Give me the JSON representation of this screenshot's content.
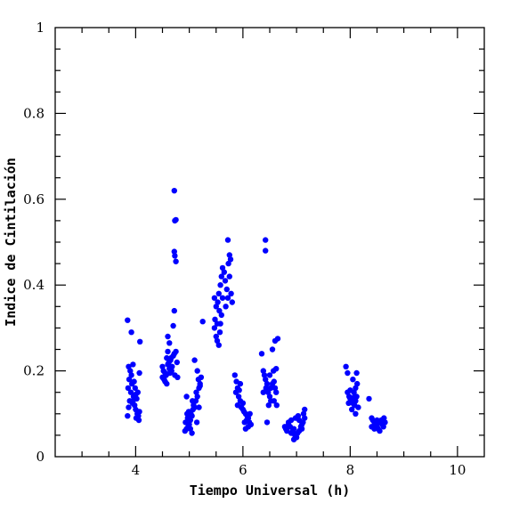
{
  "chart_data": {
    "type": "scatter",
    "xlabel": "Tiempo Universal (h)",
    "ylabel": "Indice de Cintilación",
    "xlim": [
      2.5,
      10.5
    ],
    "ylim": [
      0,
      1
    ],
    "x_ticks": [
      4,
      6,
      8,
      10
    ],
    "x_tick_labels": [
      "4",
      "6",
      "8",
      "10"
    ],
    "y_ticks": [
      0,
      0.2,
      0.4,
      0.6,
      0.8,
      1
    ],
    "y_tick_labels": [
      "0",
      "0.2",
      "0.4",
      "0.6",
      "0.8",
      "1"
    ],
    "marker_color": "#0000ff",
    "grid": false,
    "series": [
      {
        "points": [
          [
            3.85,
            0.318
          ],
          [
            3.92,
            0.29
          ],
          [
            3.87,
            0.21
          ],
          [
            3.9,
            0.2
          ],
          [
            3.95,
            0.215
          ],
          [
            3.88,
            0.18
          ],
          [
            3.93,
            0.17
          ],
          [
            3.86,
            0.16
          ],
          [
            3.91,
            0.15
          ],
          [
            3.96,
            0.14
          ],
          [
            3.89,
            0.13
          ],
          [
            3.94,
            0.125
          ],
          [
            3.98,
            0.12
          ],
          [
            3.87,
            0.115
          ],
          [
            4.0,
            0.11
          ],
          [
            4.03,
            0.1
          ],
          [
            4.05,
            0.095
          ],
          [
            4.07,
            0.105
          ],
          [
            4.02,
            0.135
          ],
          [
            4.04,
            0.15
          ],
          [
            3.99,
            0.16
          ],
          [
            4.01,
            0.09
          ],
          [
            4.06,
            0.085
          ],
          [
            3.85,
            0.095
          ],
          [
            4.08,
            0.268
          ],
          [
            4.07,
            0.195
          ],
          [
            3.92,
            0.19
          ],
          [
            3.97,
            0.175
          ],
          [
            4.0,
            0.145
          ],
          [
            3.95,
            0.13
          ],
          [
            4.5,
            0.21
          ],
          [
            4.52,
            0.2
          ],
          [
            4.55,
            0.195
          ],
          [
            4.57,
            0.19
          ],
          [
            4.53,
            0.18
          ],
          [
            4.6,
            0.215
          ],
          [
            4.62,
            0.22
          ],
          [
            4.58,
            0.23
          ],
          [
            4.65,
            0.225
          ],
          [
            4.55,
            0.175
          ],
          [
            4.5,
            0.185
          ],
          [
            4.63,
            0.205
          ],
          [
            4.67,
            0.2
          ],
          [
            4.6,
            0.245
          ],
          [
            4.72,
            0.24
          ],
          [
            4.75,
            0.245
          ],
          [
            4.7,
            0.235
          ],
          [
            4.68,
            0.21
          ],
          [
            4.73,
            0.19
          ],
          [
            4.6,
            0.28
          ],
          [
            4.63,
            0.265
          ],
          [
            4.7,
            0.305
          ],
          [
            4.72,
            0.34
          ],
          [
            4.73,
            0.55
          ],
          [
            4.75,
            0.552
          ],
          [
            4.72,
            0.478
          ],
          [
            4.73,
            0.468
          ],
          [
            4.75,
            0.455
          ],
          [
            4.72,
            0.62
          ],
          [
            4.78,
            0.185
          ],
          [
            4.77,
            0.22
          ],
          [
            4.58,
            0.17
          ],
          [
            4.64,
            0.195
          ],
          [
            4.66,
            0.23
          ],
          [
            4.92,
            0.06
          ],
          [
            4.95,
            0.065
          ],
          [
            4.98,
            0.07
          ],
          [
            5.0,
            0.075
          ],
          [
            4.93,
            0.08
          ],
          [
            5.02,
            0.085
          ],
          [
            4.97,
            0.09
          ],
          [
            5.05,
            0.095
          ],
          [
            5.03,
            0.1
          ],
          [
            4.99,
            0.105
          ],
          [
            5.07,
            0.11
          ],
          [
            5.1,
            0.115
          ],
          [
            5.08,
            0.12
          ],
          [
            5.12,
            0.13
          ],
          [
            5.15,
            0.14
          ],
          [
            5.13,
            0.15
          ],
          [
            5.18,
            0.16
          ],
          [
            5.2,
            0.17
          ],
          [
            5.17,
            0.18
          ],
          [
            5.22,
            0.185
          ],
          [
            5.15,
            0.2
          ],
          [
            5.1,
            0.225
          ],
          [
            4.95,
            0.14
          ],
          [
            5.25,
            0.315
          ],
          [
            5.2,
            0.165
          ],
          [
            5.18,
            0.115
          ],
          [
            5.05,
            0.055
          ],
          [
            4.96,
            0.1
          ],
          [
            5.06,
            0.13
          ],
          [
            5.14,
            0.08
          ],
          [
            5.02,
            0.065
          ],
          [
            5.47,
            0.3
          ],
          [
            5.5,
            0.28
          ],
          [
            5.52,
            0.27
          ],
          [
            5.55,
            0.26
          ],
          [
            5.48,
            0.32
          ],
          [
            5.5,
            0.35
          ],
          [
            5.53,
            0.36
          ],
          [
            5.56,
            0.34
          ],
          [
            5.58,
            0.31
          ],
          [
            5.6,
            0.33
          ],
          [
            5.62,
            0.37
          ],
          [
            5.55,
            0.38
          ],
          [
            5.58,
            0.4
          ],
          [
            5.6,
            0.42
          ],
          [
            5.62,
            0.44
          ],
          [
            5.65,
            0.43
          ],
          [
            5.67,
            0.41
          ],
          [
            5.7,
            0.39
          ],
          [
            5.72,
            0.37
          ],
          [
            5.68,
            0.35
          ],
          [
            5.73,
            0.45
          ],
          [
            5.75,
            0.47
          ],
          [
            5.72,
            0.505
          ],
          [
            5.77,
            0.46
          ],
          [
            5.75,
            0.42
          ],
          [
            5.78,
            0.38
          ],
          [
            5.8,
            0.36
          ],
          [
            5.52,
            0.31
          ],
          [
            5.47,
            0.37
          ],
          [
            5.57,
            0.29
          ],
          [
            5.85,
            0.19
          ],
          [
            5.88,
            0.175
          ],
          [
            5.9,
            0.16
          ],
          [
            5.87,
            0.15
          ],
          [
            5.92,
            0.14
          ],
          [
            5.95,
            0.13
          ],
          [
            5.9,
            0.12
          ],
          [
            5.97,
            0.115
          ],
          [
            6.0,
            0.11
          ],
          [
            6.02,
            0.105
          ],
          [
            6.05,
            0.1
          ],
          [
            6.08,
            0.095
          ],
          [
            6.1,
            0.09
          ],
          [
            6.07,
            0.085
          ],
          [
            6.12,
            0.08
          ],
          [
            6.15,
            0.075
          ],
          [
            6.1,
            0.07
          ],
          [
            6.05,
            0.065
          ],
          [
            6.0,
            0.125
          ],
          [
            5.95,
            0.17
          ],
          [
            6.13,
            0.1
          ],
          [
            5.93,
            0.155
          ],
          [
            6.03,
            0.08
          ],
          [
            6.35,
            0.24
          ],
          [
            6.38,
            0.2
          ],
          [
            6.4,
            0.19
          ],
          [
            6.42,
            0.18
          ],
          [
            6.45,
            0.17
          ],
          [
            6.43,
            0.16
          ],
          [
            6.47,
            0.15
          ],
          [
            6.5,
            0.14
          ],
          [
            6.52,
            0.13
          ],
          [
            6.48,
            0.12
          ],
          [
            6.55,
            0.17
          ],
          [
            6.58,
            0.175
          ],
          [
            6.6,
            0.16
          ],
          [
            6.62,
            0.15
          ],
          [
            6.57,
            0.2
          ],
          [
            6.62,
            0.205
          ],
          [
            6.55,
            0.25
          ],
          [
            6.6,
            0.27
          ],
          [
            6.65,
            0.275
          ],
          [
            6.42,
            0.505
          ],
          [
            6.42,
            0.48
          ],
          [
            6.38,
            0.15
          ],
          [
            6.5,
            0.19
          ],
          [
            6.45,
            0.08
          ],
          [
            6.63,
            0.12
          ],
          [
            6.52,
            0.16
          ],
          [
            6.58,
            0.13
          ],
          [
            6.78,
            0.07
          ],
          [
            6.8,
            0.065
          ],
          [
            6.82,
            0.06
          ],
          [
            6.85,
            0.075
          ],
          [
            6.88,
            0.07
          ],
          [
            6.9,
            0.055
          ],
          [
            6.93,
            0.06
          ],
          [
            6.95,
            0.065
          ],
          [
            6.97,
            0.05
          ],
          [
            7.0,
            0.045
          ],
          [
            7.02,
            0.055
          ],
          [
            7.05,
            0.06
          ],
          [
            7.08,
            0.07
          ],
          [
            7.1,
            0.075
          ],
          [
            7.12,
            0.08
          ],
          [
            7.15,
            0.09
          ],
          [
            7.13,
            0.1
          ],
          [
            7.15,
            0.11
          ],
          [
            7.05,
            0.085
          ],
          [
            6.98,
            0.09
          ],
          [
            6.85,
            0.08
          ],
          [
            6.9,
            0.085
          ],
          [
            7.03,
            0.095
          ],
          [
            7.1,
            0.065
          ],
          [
            6.95,
            0.04
          ],
          [
            7.92,
            0.21
          ],
          [
            7.95,
            0.15
          ],
          [
            7.98,
            0.14
          ],
          [
            8.0,
            0.135
          ],
          [
            8.02,
            0.13
          ],
          [
            8.05,
            0.125
          ],
          [
            8.08,
            0.12
          ],
          [
            8.1,
            0.13
          ],
          [
            8.12,
            0.14
          ],
          [
            8.07,
            0.15
          ],
          [
            8.1,
            0.16
          ],
          [
            8.13,
            0.17
          ],
          [
            8.05,
            0.18
          ],
          [
            7.95,
            0.195
          ],
          [
            8.12,
            0.195
          ],
          [
            8.15,
            0.115
          ],
          [
            8.1,
            0.1
          ],
          [
            8.03,
            0.11
          ],
          [
            7.97,
            0.125
          ],
          [
            8.0,
            0.155
          ],
          [
            8.08,
            0.14
          ],
          [
            8.35,
            0.135
          ],
          [
            8.4,
            0.09
          ],
          [
            8.42,
            0.085
          ],
          [
            8.45,
            0.08
          ],
          [
            8.48,
            0.075
          ],
          [
            8.5,
            0.07
          ],
          [
            8.52,
            0.065
          ],
          [
            8.55,
            0.08
          ],
          [
            8.58,
            0.085
          ],
          [
            8.6,
            0.075
          ],
          [
            8.62,
            0.07
          ],
          [
            8.65,
            0.08
          ],
          [
            8.45,
            0.065
          ],
          [
            8.55,
            0.06
          ],
          [
            8.4,
            0.07
          ],
          [
            8.63,
            0.09
          ],
          [
            8.5,
            0.085
          ]
        ]
      }
    ]
  }
}
